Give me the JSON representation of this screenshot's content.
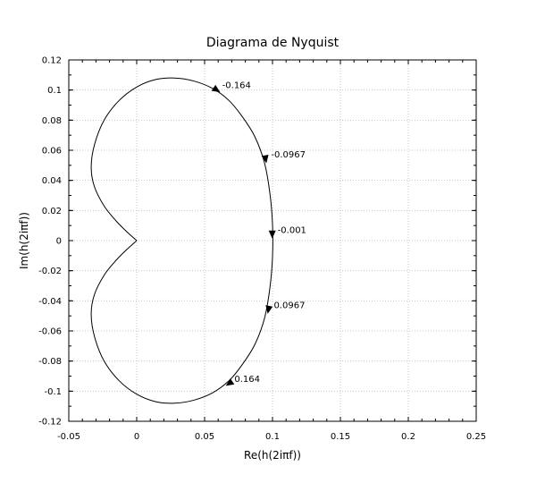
{
  "chart_data": {
    "type": "line",
    "title": "Diagrama de Nyquist",
    "xlabel": "Re(h(2iπf))",
    "ylabel": "Im(h(2iπf))",
    "xlim": [
      -0.05,
      0.25
    ],
    "ylim": [
      -0.12,
      0.12
    ],
    "xticks": [
      -0.05,
      0,
      0.05,
      0.1,
      0.15,
      0.2,
      0.25
    ],
    "xtick_labels": [
      "-0.05",
      "0",
      "0.05",
      "0.1",
      "0.15",
      "0.2",
      "0.25"
    ],
    "yticks": [
      -0.12,
      -0.1,
      -0.08,
      -0.06,
      -0.04,
      -0.02,
      0,
      0.02,
      0.04,
      0.06,
      0.08,
      0.1,
      0.12
    ],
    "ytick_labels": [
      "-0.12",
      "-0.1",
      "-0.08",
      "-0.06",
      "-0.04",
      "-0.02",
      "0",
      "0.02",
      "0.04",
      "0.06",
      "0.08",
      "0.1",
      "0.12"
    ],
    "grid": true,
    "line_color": "#000000",
    "grid_color": "#c8c8c8",
    "series": [
      {
        "x": [
          0.0,
          -0.0068,
          -0.0151,
          -0.024,
          -0.0312,
          -0.0335,
          -0.031,
          -0.024,
          -0.013,
          0.0,
          0.014,
          0.028,
          0.042,
          0.056,
          0.068,
          0.078,
          0.087,
          0.094,
          0.098,
          0.1,
          0.1,
          0.098,
          0.094,
          0.087,
          0.078,
          0.068,
          0.056,
          0.042,
          0.028,
          0.014,
          0.0,
          -0.013,
          -0.024,
          -0.031,
          -0.0335,
          -0.0312,
          -0.024,
          -0.0151,
          -0.0068,
          0.0
        ],
        "y": [
          0.0,
          0.0055,
          0.013,
          0.023,
          0.036,
          0.049,
          0.064,
          0.08,
          0.093,
          0.102,
          0.107,
          0.108,
          0.106,
          0.101,
          0.093,
          0.082,
          0.069,
          0.052,
          0.032,
          0.011,
          -0.011,
          -0.032,
          -0.052,
          -0.069,
          -0.082,
          -0.093,
          -0.101,
          -0.106,
          -0.108,
          -0.107,
          -0.102,
          -0.093,
          -0.08,
          -0.064,
          -0.049,
          -0.036,
          -0.023,
          -0.013,
          -0.0055,
          0.0
        ]
      }
    ],
    "annotations": [
      {
        "label": "-0.164",
        "x": 0.059,
        "y": 0.1,
        "dx": 0.0091,
        "dy": -0.0055
      },
      {
        "label": "-0.0967",
        "x": 0.095,
        "y": 0.054,
        "dx": 0.002,
        "dy": -0.01
      },
      {
        "label": "-0.001",
        "x": 0.0998,
        "y": 0.004,
        "dx": 0.0,
        "dy": -0.01
      },
      {
        "label": "0.0967",
        "x": 0.097,
        "y": -0.046,
        "dx": -0.002,
        "dy": -0.01
      },
      {
        "label": "0.164",
        "x": 0.068,
        "y": -0.095,
        "dx": -0.0091,
        "dy": -0.0055
      }
    ]
  }
}
